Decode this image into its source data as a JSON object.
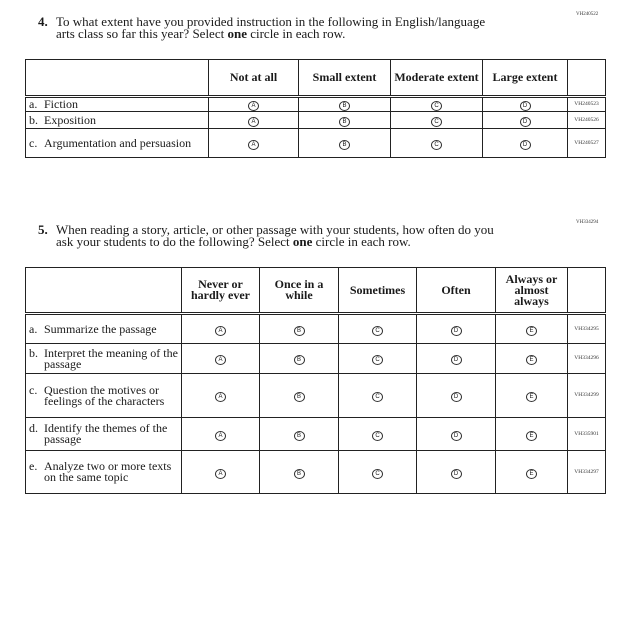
{
  "q4": {
    "code": "VH240522",
    "number": "4.",
    "line1": "To what extent have you provided instruction in the following in English/language",
    "line2_pre": "arts class so far this year? Select ",
    "line2_bold": "one",
    "line2_post": " circle in each row.",
    "columns": [
      "Not at all",
      "Small extent",
      "Moderate extent",
      "Large extent"
    ],
    "options": [
      "A",
      "B",
      "C",
      "D"
    ],
    "rows": [
      {
        "letter": "a.",
        "text": "Fiction",
        "code": "VH240523"
      },
      {
        "letter": "b.",
        "text": "Exposition",
        "code": "VH240526"
      },
      {
        "letter": "c.",
        "text": "Argumentation and persuasion",
        "code": "VH240527"
      }
    ]
  },
  "q5": {
    "code": "VH334294",
    "number": "5.",
    "line1": "When reading a story, article, or other passage with your students, how often do you",
    "line2_pre": "ask your students to do the following? Select ",
    "line2_bold": "one",
    "line2_post": " circle in each row.",
    "columns": [
      "Never or hardly ever",
      "Once in a while",
      "Sometimes",
      "Often",
      "Always or almost always"
    ],
    "options": [
      "A",
      "B",
      "C",
      "D",
      "E"
    ],
    "rows": [
      {
        "letter": "a.",
        "text": "Summarize the passage",
        "code": "VH334295"
      },
      {
        "letter": "b.",
        "text": "Interpret the meaning of the passage",
        "code": "VH334296"
      },
      {
        "letter": "c.",
        "text": "Question the motives or feelings of the characters",
        "code": "VH334299"
      },
      {
        "letter": "d.",
        "text": "Identify the themes of the passage",
        "code": "VH335901"
      },
      {
        "letter": "e.",
        "text": "Analyze two or more texts on the same topic",
        "code": "VH334297"
      }
    ]
  }
}
